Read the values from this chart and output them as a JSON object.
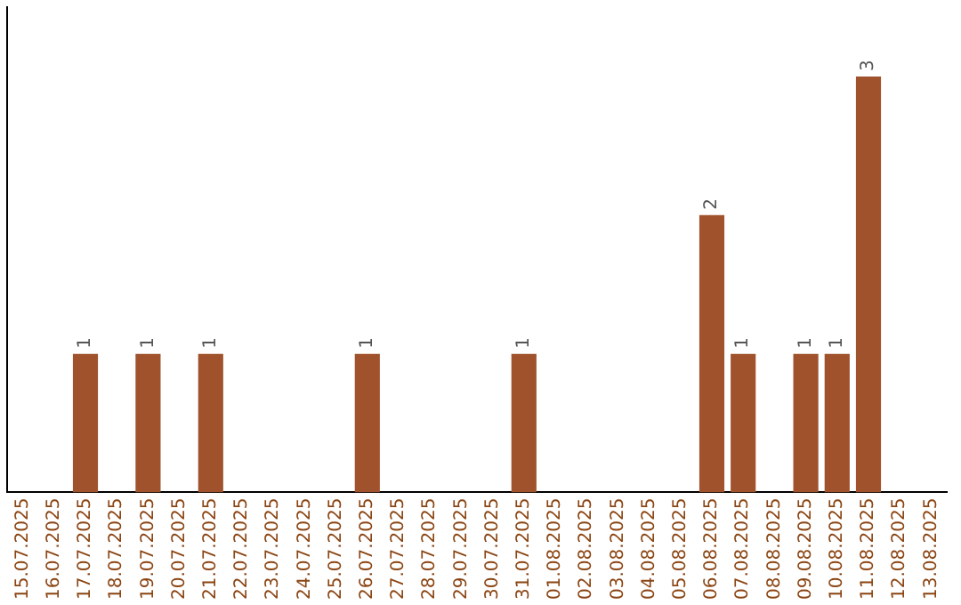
{
  "chart_data": {
    "type": "bar",
    "categories": [
      "15.07.2025",
      "16.07.2025",
      "17.07.2025",
      "18.07.2025",
      "19.07.2025",
      "20.07.2025",
      "21.07.2025",
      "22.07.2025",
      "23.07.2025",
      "24.07.2025",
      "25.07.2025",
      "26.07.2025",
      "27.07.2025",
      "28.07.2025",
      "29.07.2025",
      "30.07.2025",
      "31.07.2025",
      "01.08.2025",
      "02.08.2025",
      "03.08.2025",
      "04.08.2025",
      "05.08.2025",
      "06.08.2025",
      "07.08.2025",
      "08.08.2025",
      "09.08.2025",
      "10.08.2025",
      "11.08.2025",
      "12.08.2025",
      "13.08.2025"
    ],
    "values": [
      0,
      0,
      1,
      0,
      1,
      0,
      1,
      0,
      0,
      0,
      0,
      1,
      0,
      0,
      0,
      0,
      1,
      0,
      0,
      0,
      0,
      0,
      2,
      1,
      0,
      1,
      1,
      3,
      0,
      0
    ],
    "value_labels": [
      null,
      null,
      "1",
      null,
      "1",
      null,
      "1",
      null,
      null,
      null,
      null,
      "1",
      null,
      null,
      null,
      null,
      "1",
      null,
      null,
      null,
      null,
      null,
      "2",
      "1",
      null,
      "1",
      "1",
      "3",
      null,
      null
    ],
    "color": "#a0522d",
    "grid": false,
    "legend": false,
    "tick_labels": "x"
  }
}
